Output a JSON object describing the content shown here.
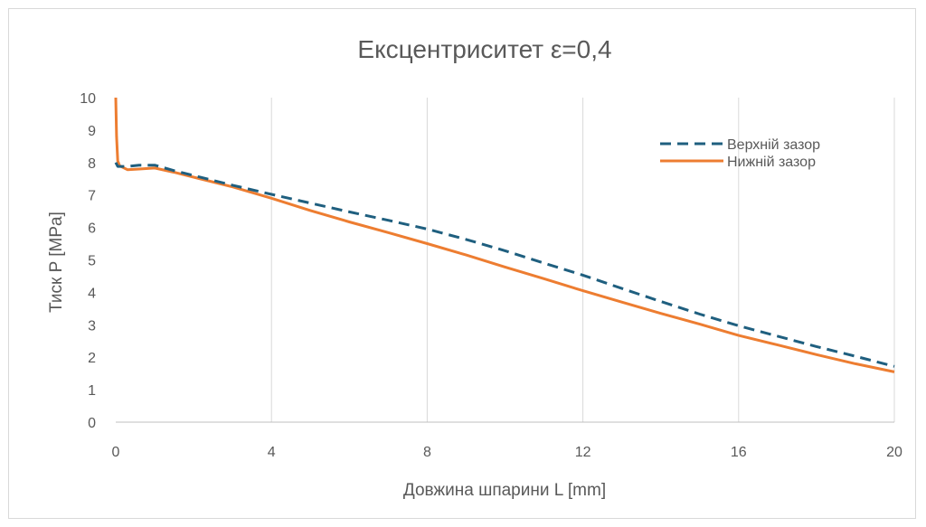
{
  "chart_data": {
    "type": "line",
    "title": "Ексцентриситет ε=0,4",
    "xlabel": "Довжина шпарини L [mm]",
    "ylabel": "Тиск P [MPa]",
    "xlim": [
      0,
      20
    ],
    "ylim": [
      0,
      10
    ],
    "xticks": [
      0,
      4,
      8,
      12,
      16,
      20
    ],
    "yticks": [
      0,
      1,
      2,
      3,
      4,
      5,
      6,
      7,
      8,
      9,
      10
    ],
    "grid": "vertical",
    "legend_position": "top-right",
    "series": [
      {
        "name": "Верхній зазор",
        "color": "#1f5f7f",
        "style": "dashed",
        "x": [
          0,
          0.05,
          0.3,
          0.6,
          1.0,
          1.5,
          2,
          3,
          4,
          5,
          6,
          7,
          8,
          9,
          10,
          11,
          12,
          13,
          14,
          15,
          16,
          17,
          18,
          19,
          20
        ],
        "y": [
          8.0,
          7.88,
          7.88,
          7.92,
          7.92,
          7.75,
          7.6,
          7.3,
          7.02,
          6.75,
          6.48,
          6.22,
          5.95,
          5.63,
          5.28,
          4.9,
          4.53,
          4.12,
          3.72,
          3.33,
          2.97,
          2.65,
          2.33,
          2.03,
          1.72
        ]
      },
      {
        "name": "Нижній зазор",
        "color": "#ed7d31",
        "style": "solid",
        "x": [
          0,
          0.02,
          0.05,
          0.1,
          0.3,
          0.6,
          1.0,
          1.5,
          2,
          3,
          4,
          5,
          6,
          7,
          8,
          9,
          10,
          11,
          12,
          13,
          14,
          15,
          16,
          17,
          18,
          19,
          20
        ],
        "y": [
          10.0,
          8.8,
          8.05,
          7.9,
          7.78,
          7.8,
          7.83,
          7.7,
          7.55,
          7.25,
          6.9,
          6.52,
          6.17,
          5.84,
          5.5,
          5.15,
          4.78,
          4.42,
          4.05,
          3.7,
          3.35,
          3.02,
          2.67,
          2.38,
          2.08,
          1.8,
          1.55
        ]
      }
    ]
  }
}
